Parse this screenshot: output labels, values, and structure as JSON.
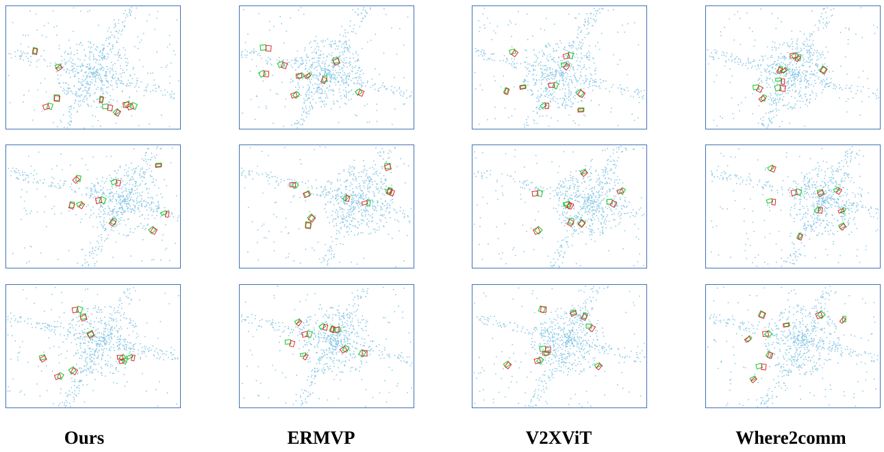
{
  "columns": [
    "Ours",
    "ERMVP",
    "V2XViT",
    "Where2comm"
  ]
}
